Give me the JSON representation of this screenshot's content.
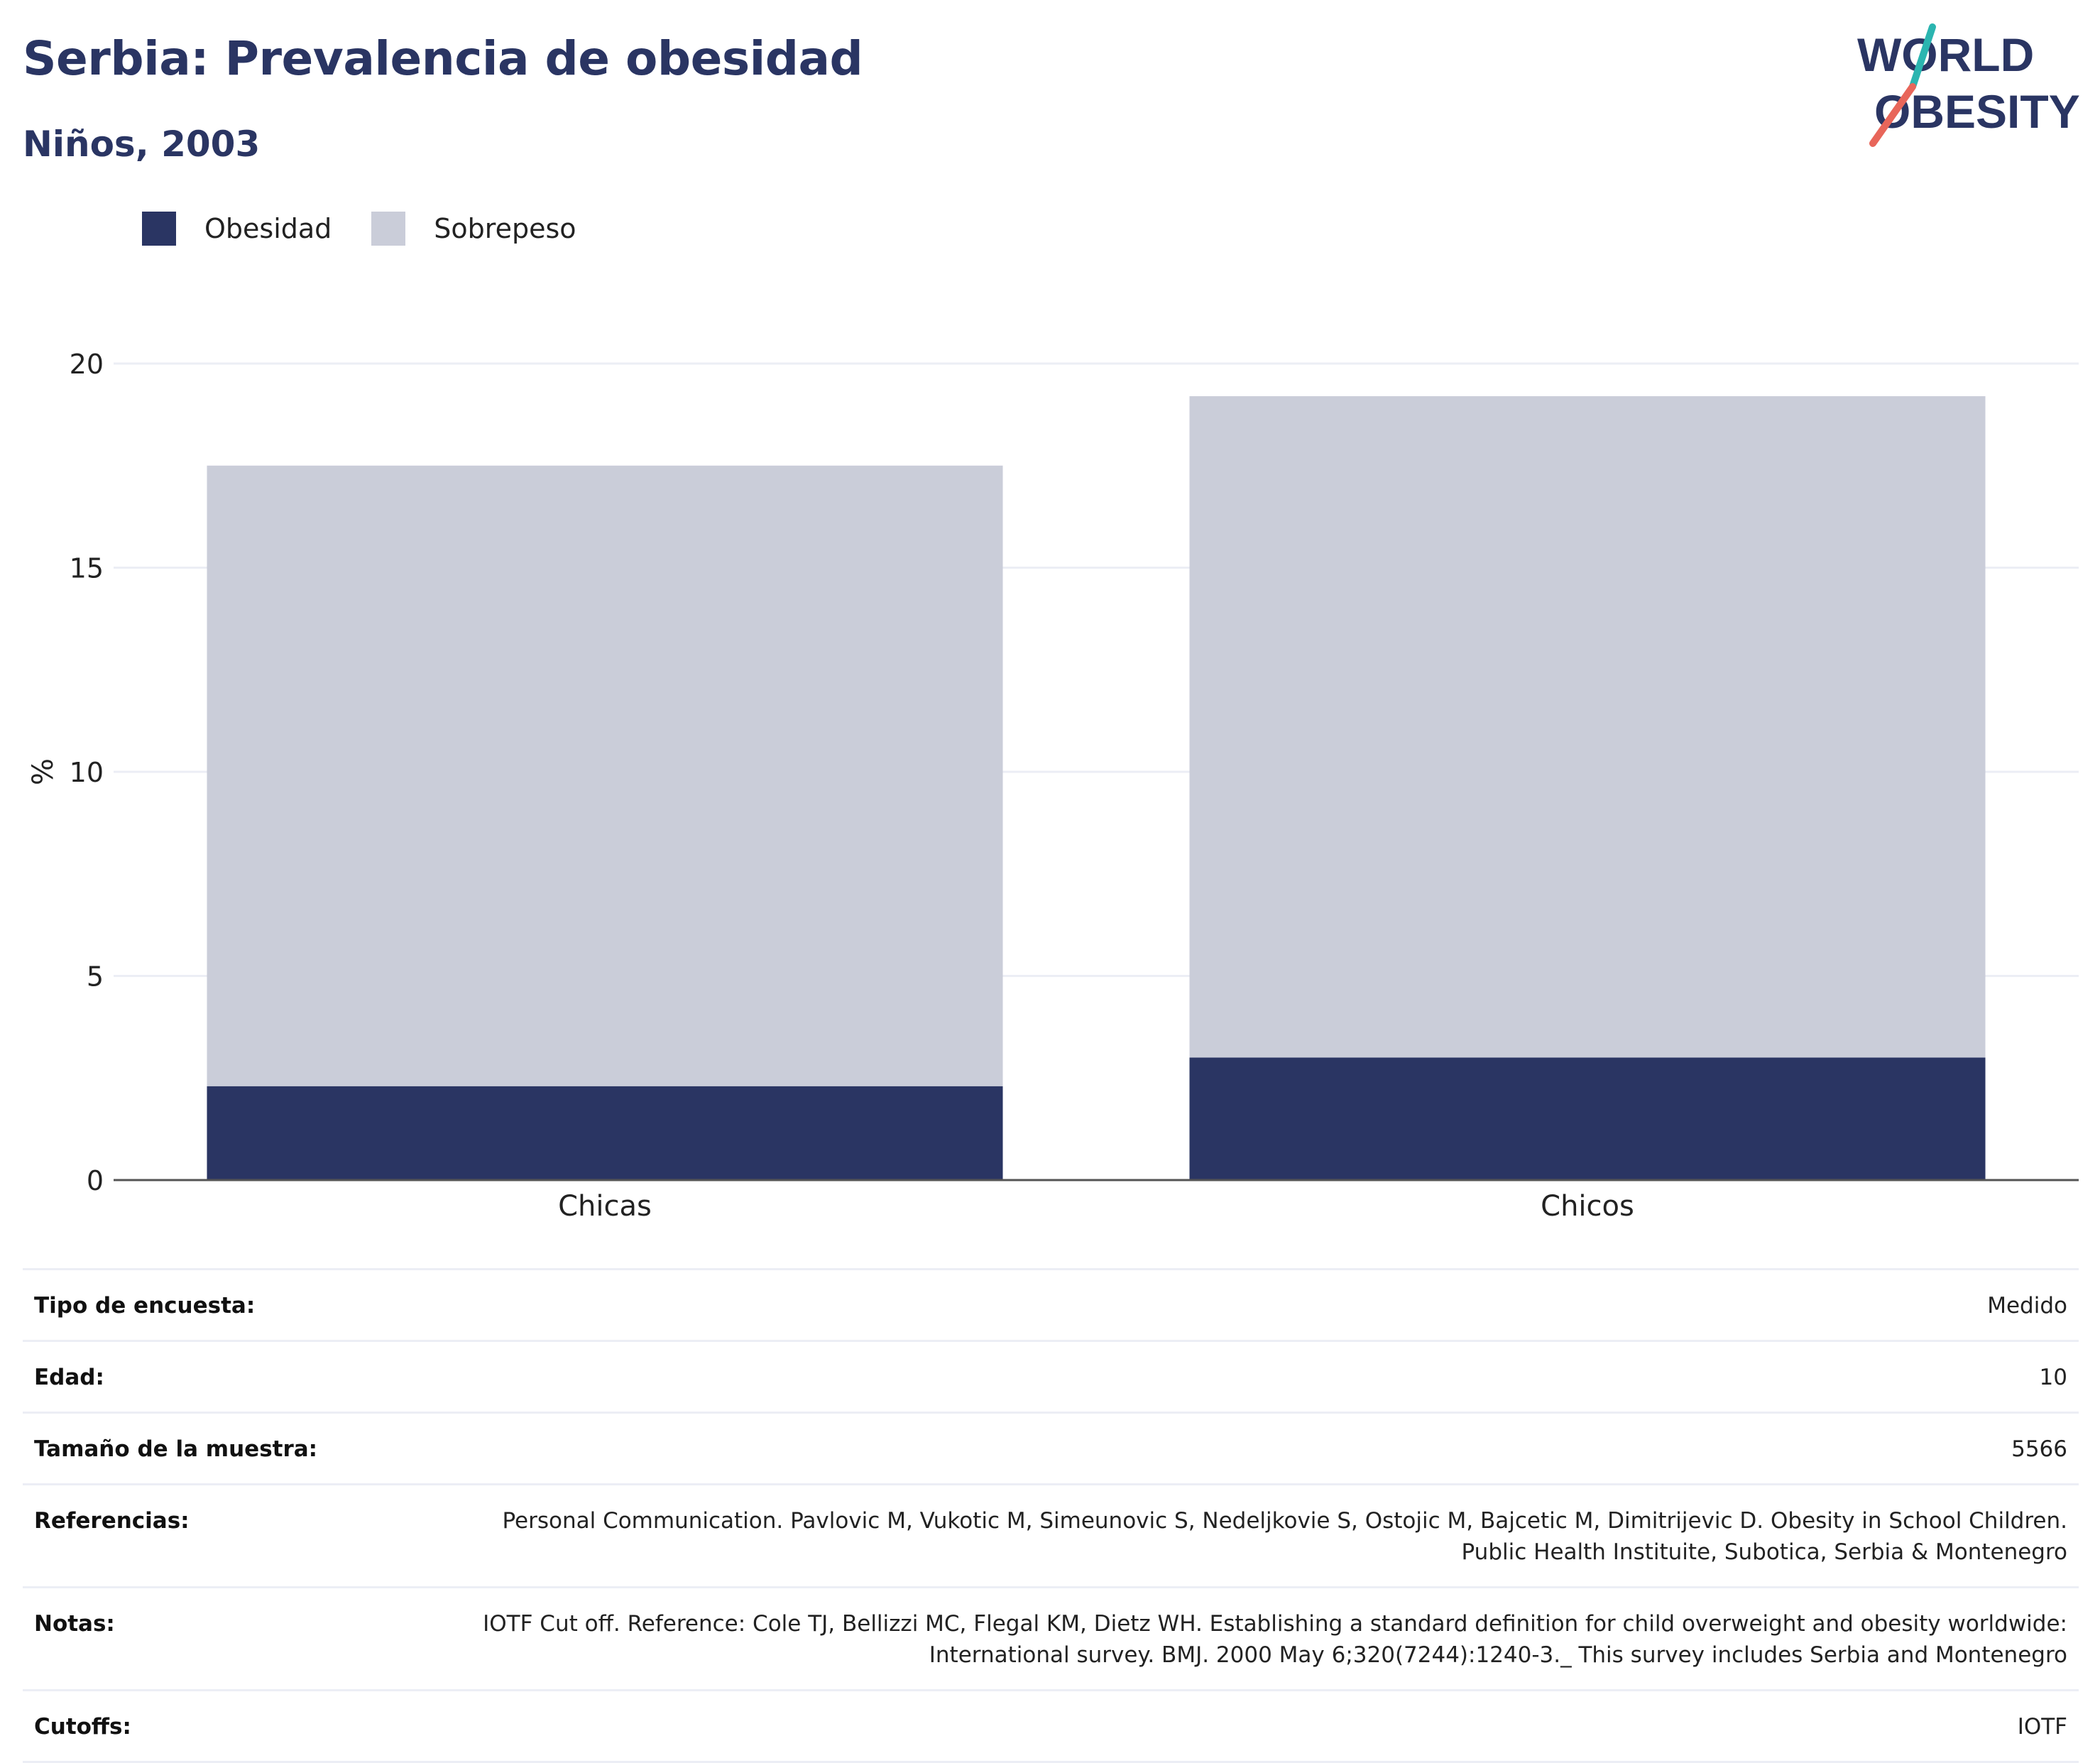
{
  "header": {
    "title": "Serbia: Prevalencia de obesidad",
    "subtitle": "Niños, 2003"
  },
  "logo": {
    "line1": "WORLD",
    "line2": "OBESITY",
    "accent_teal": "#2bb5b0",
    "accent_red": "#e8665a"
  },
  "colors": {
    "obesidad": "#2a3563",
    "sobrepeso": "#cacdd9",
    "grid": "#eceef5",
    "axis": "#555555"
  },
  "chart_data": {
    "type": "bar",
    "stacked": true,
    "categories": [
      "Chicas",
      "Chicos"
    ],
    "series": [
      {
        "name": "Obesidad",
        "values": [
          2.3,
          3.0
        ],
        "color": "#2a3563"
      },
      {
        "name": "Sobrepeso",
        "values": [
          15.2,
          16.2
        ],
        "color": "#cacdd9"
      }
    ],
    "ylabel": "%",
    "ylim": [
      0,
      20
    ],
    "yticks": [
      0,
      5,
      10,
      15,
      20
    ],
    "grid": true,
    "legend_position": "top-left"
  },
  "legend": [
    {
      "label": "Obesidad",
      "color": "#2a3563"
    },
    {
      "label": "Sobrepeso",
      "color": "#cacdd9"
    }
  ],
  "meta": [
    {
      "label": "Tipo de encuesta:",
      "value": "Medido"
    },
    {
      "label": "Edad:",
      "value": "10"
    },
    {
      "label": "Tamaño de la muestra:",
      "value": "5566"
    },
    {
      "label": "Referencias:",
      "value": "Personal Communication. Pavlovic M, Vukotic M, Simeunovic S, Nedeljkovie S, Ostojic M, Bajcetic M, Dimitrijevic D. Obesity in School Children. Public Health Instituite, Subotica, Serbia & Montenegro"
    },
    {
      "label": "Notas:",
      "value": "IOTF Cut off. Reference: Cole TJ, Bellizzi MC, Flegal KM, Dietz WH. Establishing a standard definition for child overweight and obesity worldwide: International survey. BMJ. 2000 May 6;320(7244):1240-3._ This survey includes Serbia and Montenegro"
    },
    {
      "label": "Cutoffs:",
      "value": "IOTF"
    }
  ]
}
